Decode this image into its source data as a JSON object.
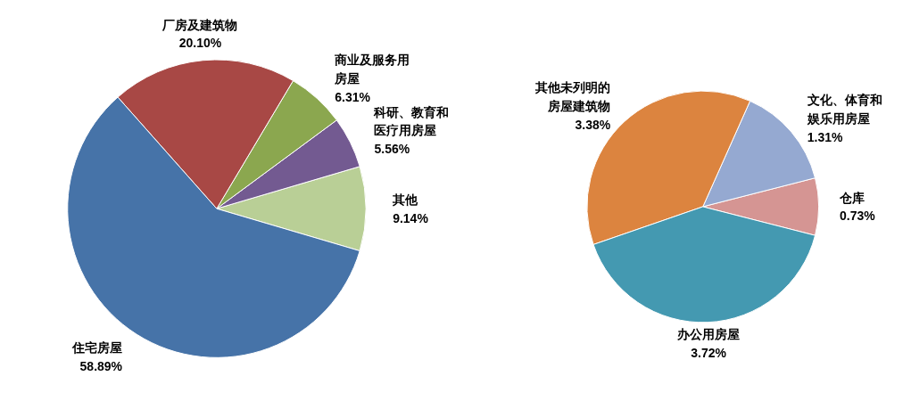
{
  "chart_data": [
    {
      "type": "pie",
      "categories": [
        "其他",
        "科研、教育和医疗用房屋",
        "商业及服务用房屋",
        "厂房及建筑物",
        "住宅房屋"
      ],
      "values": [
        9.14,
        5.56,
        6.31,
        20.1,
        58.89
      ],
      "colors": [
        "#b9cf96",
        "#735a91",
        "#8ba74f",
        "#a84845",
        "#4673a8"
      ],
      "value_labels": [
        "9.14%",
        "5.56%",
        "6.31%",
        "20.10%",
        "58.89%"
      ]
    },
    {
      "type": "pie",
      "categories": [
        "仓库",
        "文化、体育和娱乐用房屋",
        "其他未列明的房屋建筑物",
        "办公用房屋"
      ],
      "values": [
        0.73,
        1.31,
        3.38,
        3.72
      ],
      "colors": [
        "#d59593",
        "#95a9d1",
        "#dc843f",
        "#4499b1"
      ],
      "value_labels": [
        "0.73%",
        "1.31%",
        "3.38%",
        "3.72%"
      ]
    }
  ]
}
